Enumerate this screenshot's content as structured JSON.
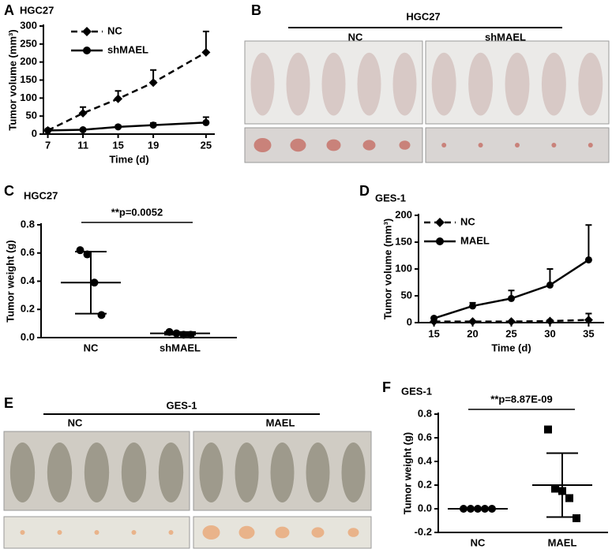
{
  "chart_data": [
    {
      "type": "line",
      "panel": "A",
      "title": "HGC27",
      "xlabel": "Time (d)",
      "ylabel": "Tumor volume (mm³)",
      "x": [
        7,
        11,
        15,
        19,
        25
      ],
      "xlim": [
        6.5,
        26
      ],
      "xticks": [
        7,
        11,
        15,
        19,
        25
      ],
      "ylim": [
        0,
        300
      ],
      "yticks": [
        0,
        50,
        100,
        150,
        200,
        250,
        300
      ],
      "legend": "upper left",
      "series": [
        {
          "name": "NC",
          "color": "#000000",
          "dash": true,
          "marker": "diamond",
          "values": [
            10,
            58,
            98,
            143,
            227
          ],
          "errors": [
            4,
            17,
            22,
            35,
            58
          ]
        },
        {
          "name": "shMAEL",
          "color": "#000000",
          "dash": false,
          "marker": "circle",
          "values": [
            10,
            12,
            20,
            25,
            32
          ],
          "errors": [
            2,
            3,
            4,
            6,
            15
          ]
        }
      ]
    },
    {
      "type": "dot",
      "panel": "C",
      "title": "HGC27",
      "ylabel": "Tumor weight (g)",
      "annotation": "**p=0.0052",
      "categories": [
        "NC",
        "shMAEL"
      ],
      "markers": [
        "circle",
        "circle"
      ],
      "values": [
        [
          0.62,
          0.59,
          0.39,
          0.16
        ],
        [
          0.04,
          0.03,
          0.02,
          0.02
        ]
      ],
      "mean": [
        0.39,
        0.03
      ],
      "sd": [
        0.22,
        0.01
      ],
      "ylim": [
        0,
        0.8
      ],
      "yticks": [
        {
          "value": 0,
          "label": "0.0"
        },
        0.2,
        0.4,
        0.6,
        0.8
      ]
    },
    {
      "type": "line",
      "panel": "D",
      "title": "GES-1",
      "xlabel": "Time (d)",
      "ylabel": "Tumor volume (mm³)",
      "x": [
        15,
        20,
        25,
        30,
        35
      ],
      "xlim": [
        13,
        37
      ],
      "xticks": [
        15,
        20,
        25,
        30,
        35
      ],
      "ylim": [
        0,
        200
      ],
      "yticks": [
        0,
        50,
        100,
        150,
        200
      ],
      "legend": "upper left",
      "series": [
        {
          "name": "NC",
          "color": "#000000",
          "dash": true,
          "marker": "diamond",
          "values": [
            2,
            2,
            2,
            3,
            5
          ],
          "errors": [
            1,
            1,
            1,
            2,
            12
          ]
        },
        {
          "name": "MAEL",
          "color": "#000000",
          "dash": false,
          "marker": "circle",
          "values": [
            8,
            31,
            45,
            70,
            117
          ],
          "errors": [
            2,
            6,
            15,
            30,
            65
          ]
        }
      ]
    },
    {
      "type": "dot",
      "panel": "F",
      "title": "GES-1",
      "ylabel": "Tumor weight (g)",
      "annotation": "**p=8.87E-09",
      "categories": [
        "NC",
        "MAEL"
      ],
      "markers": [
        "circle",
        "square"
      ],
      "values": [
        [
          0,
          0,
          0,
          0,
          0
        ],
        [
          0.67,
          0.17,
          0.15,
          0.09,
          -0.08
        ]
      ],
      "mean": [
        0,
        0.2
      ],
      "sd": [
        0,
        0.27
      ],
      "ylim": [
        -0.2,
        0.8
      ],
      "yticks": [
        -0.2,
        {
          "value": 0,
          "label": "0.0"
        },
        0.2,
        0.4,
        0.6,
        0.8
      ]
    }
  ],
  "photo_panels": [
    {
      "panel": "B",
      "title": "HGC27",
      "groups": [
        "NC",
        "shMAEL"
      ]
    },
    {
      "panel": "E",
      "title": "GES-1",
      "groups": [
        "NC",
        "MAEL"
      ]
    }
  ]
}
